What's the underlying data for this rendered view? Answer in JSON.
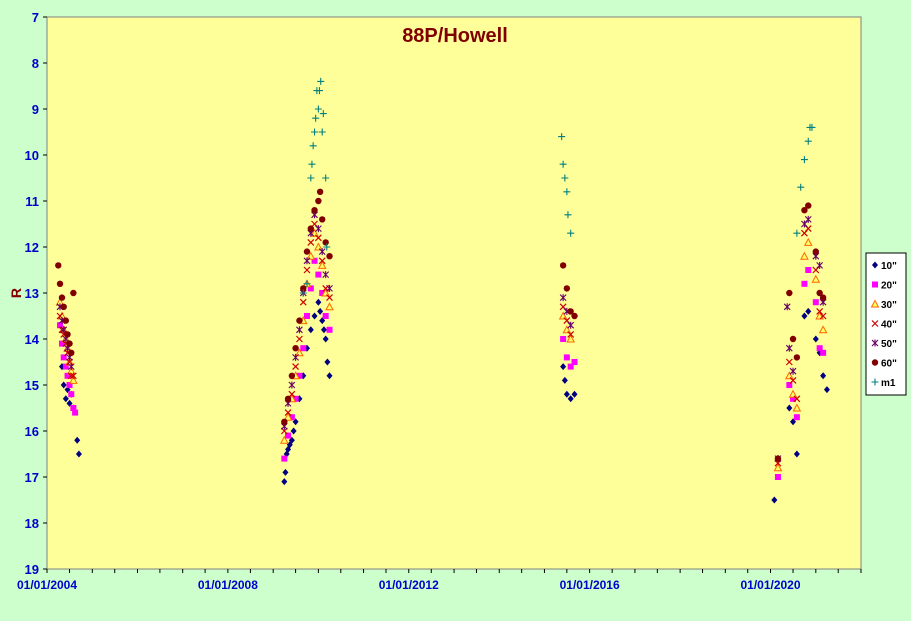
{
  "chart_data": {
    "type": "scatter",
    "title": "88P/Howell",
    "xlabel": "",
    "ylabel": "R",
    "ylim": [
      19,
      7
    ],
    "y_inverted": true,
    "y_ticks": [
      "7",
      "8",
      "9",
      "10",
      "11",
      "12",
      "13",
      "14",
      "15",
      "16",
      "17",
      "18",
      "19"
    ],
    "xlim": [
      "2004-01-01",
      "2022-01-01"
    ],
    "x_ticks": [
      "01/01/2004",
      "01/01/2008",
      "01/01/2012",
      "01/01/2016",
      "01/01/2020"
    ],
    "colors": {
      "plot_bg": "#ffff99",
      "page_bg": "#ccffcc"
    },
    "legend_position": "right",
    "series": [
      {
        "name": "10\"",
        "marker": "diamond",
        "color": "#000080",
        "points": [
          [
            "2004-05-01",
            14.6
          ],
          [
            "2004-05-15",
            15.0
          ],
          [
            "2004-06-01",
            15.3
          ],
          [
            "2004-06-15",
            15.1
          ],
          [
            "2004-07-01",
            15.4
          ],
          [
            "2004-07-15",
            15.2
          ],
          [
            "2004-08-01",
            15.5
          ],
          [
            "2004-09-01",
            16.2
          ],
          [
            "2004-09-15",
            16.5
          ],
          [
            "2009-04-01",
            17.1
          ],
          [
            "2009-04-10",
            16.9
          ],
          [
            "2009-04-20",
            16.5
          ],
          [
            "2009-05-01",
            16.4
          ],
          [
            "2009-05-15",
            16.3
          ],
          [
            "2009-06-01",
            16.2
          ],
          [
            "2009-06-15",
            16.0
          ],
          [
            "2009-07-01",
            15.8
          ],
          [
            "2009-08-01",
            15.3
          ],
          [
            "2009-09-01",
            14.8
          ],
          [
            "2009-10-01",
            14.2
          ],
          [
            "2009-11-01",
            13.8
          ],
          [
            "2009-12-01",
            13.5
          ],
          [
            "2010-01-01",
            13.2
          ],
          [
            "2010-01-15",
            13.4
          ],
          [
            "2010-02-01",
            13.6
          ],
          [
            "2010-02-15",
            13.8
          ],
          [
            "2010-03-01",
            14.0
          ],
          [
            "2010-03-15",
            14.5
          ],
          [
            "2010-04-01",
            14.8
          ],
          [
            "2015-06-01",
            14.6
          ],
          [
            "2015-06-15",
            14.9
          ],
          [
            "2015-07-01",
            15.2
          ],
          [
            "2015-08-01",
            15.3
          ],
          [
            "2015-09-01",
            15.2
          ],
          [
            "2020-02-01",
            17.5
          ],
          [
            "2020-06-01",
            15.5
          ],
          [
            "2020-07-01",
            15.8
          ],
          [
            "2020-08-01",
            16.5
          ],
          [
            "2020-10-01",
            13.5
          ],
          [
            "2020-11-01",
            13.4
          ],
          [
            "2021-01-01",
            14.0
          ],
          [
            "2021-02-01",
            14.3
          ],
          [
            "2021-03-01",
            14.8
          ],
          [
            "2021-04-01",
            15.1
          ]
        ]
      },
      {
        "name": "20\"",
        "marker": "square",
        "color": "#ff00ff",
        "points": [
          [
            "2004-04-15",
            13.7
          ],
          [
            "2004-05-01",
            14.1
          ],
          [
            "2004-05-15",
            14.4
          ],
          [
            "2004-06-01",
            14.6
          ],
          [
            "2004-06-15",
            14.8
          ],
          [
            "2004-07-01",
            15.0
          ],
          [
            "2004-07-15",
            15.2
          ],
          [
            "2004-08-01",
            15.5
          ],
          [
            "2004-08-15",
            15.6
          ],
          [
            "2009-04-01",
            16.6
          ],
          [
            "2009-05-01",
            16.1
          ],
          [
            "2009-06-01",
            15.7
          ],
          [
            "2009-07-01",
            15.3
          ],
          [
            "2009-08-01",
            14.8
          ],
          [
            "2009-09-01",
            14.2
          ],
          [
            "2009-10-01",
            13.5
          ],
          [
            "2009-11-01",
            12.9
          ],
          [
            "2009-12-01",
            12.3
          ],
          [
            "2010-01-01",
            12.6
          ],
          [
            "2010-02-01",
            13.0
          ],
          [
            "2010-03-01",
            13.5
          ],
          [
            "2010-04-01",
            13.8
          ],
          [
            "2015-06-01",
            14.0
          ],
          [
            "2015-07-01",
            14.4
          ],
          [
            "2015-08-01",
            14.6
          ],
          [
            "2015-09-01",
            14.5
          ],
          [
            "2020-03-01",
            17.0
          ],
          [
            "2020-06-01",
            15.0
          ],
          [
            "2020-07-01",
            15.3
          ],
          [
            "2020-08-01",
            15.7
          ],
          [
            "2020-10-01",
            12.8
          ],
          [
            "2020-11-01",
            12.5
          ],
          [
            "2021-01-01",
            13.2
          ],
          [
            "2021-02-01",
            14.2
          ],
          [
            "2021-03-01",
            14.3
          ]
        ]
      },
      {
        "name": "30\"",
        "marker": "triangle",
        "color": "#ff6600",
        "points": [
          [
            "2004-04-15",
            13.2
          ],
          [
            "2004-05-01",
            13.5
          ],
          [
            "2004-05-15",
            13.8
          ],
          [
            "2004-06-01",
            14.0
          ],
          [
            "2004-06-15",
            14.2
          ],
          [
            "2004-07-01",
            14.5
          ],
          [
            "2004-07-15",
            14.7
          ],
          [
            "2004-08-01",
            14.9
          ],
          [
            "2009-04-01",
            16.2
          ],
          [
            "2009-05-01",
            15.7
          ],
          [
            "2009-06-01",
            15.3
          ],
          [
            "2009-07-01",
            14.8
          ],
          [
            "2009-08-01",
            14.3
          ],
          [
            "2009-09-01",
            13.6
          ],
          [
            "2009-10-01",
            12.8
          ],
          [
            "2009-11-01",
            12.2
          ],
          [
            "2009-12-01",
            11.7
          ],
          [
            "2010-01-01",
            12.0
          ],
          [
            "2010-02-01",
            12.4
          ],
          [
            "2010-03-01",
            13.0
          ],
          [
            "2010-04-01",
            13.3
          ],
          [
            "2015-06-01",
            13.5
          ],
          [
            "2015-07-01",
            13.8
          ],
          [
            "2015-08-01",
            14.0
          ],
          [
            "2020-03-01",
            16.8
          ],
          [
            "2020-06-01",
            14.8
          ],
          [
            "2020-07-01",
            15.2
          ],
          [
            "2020-08-01",
            15.5
          ],
          [
            "2020-10-01",
            12.2
          ],
          [
            "2020-11-01",
            11.9
          ],
          [
            "2021-01-01",
            12.7
          ],
          [
            "2021-02-01",
            13.5
          ],
          [
            "2021-03-01",
            13.8
          ]
        ]
      },
      {
        "name": "40\"",
        "marker": "x",
        "color": "#cc0000",
        "points": [
          [
            "2004-04-15",
            13.5
          ],
          [
            "2004-05-01",
            13.8
          ],
          [
            "2004-05-15",
            13.9
          ],
          [
            "2004-06-01",
            14.1
          ],
          [
            "2004-06-15",
            14.3
          ],
          [
            "2004-07-01",
            14.5
          ],
          [
            "2004-07-15",
            14.8
          ],
          [
            "2004-08-01",
            14.8
          ],
          [
            "2009-04-01",
            16.0
          ],
          [
            "2009-05-01",
            15.6
          ],
          [
            "2009-06-01",
            15.2
          ],
          [
            "2009-07-01",
            14.6
          ],
          [
            "2009-08-01",
            14.0
          ],
          [
            "2009-09-01",
            13.2
          ],
          [
            "2009-10-01",
            12.5
          ],
          [
            "2009-11-01",
            11.9
          ],
          [
            "2009-12-01",
            11.5
          ],
          [
            "2010-01-01",
            11.8
          ],
          [
            "2010-02-01",
            12.3
          ],
          [
            "2010-03-01",
            12.9
          ],
          [
            "2010-04-01",
            13.1
          ],
          [
            "2015-06-01",
            13.3
          ],
          [
            "2015-07-01",
            13.6
          ],
          [
            "2015-08-01",
            13.9
          ],
          [
            "2020-03-01",
            16.7
          ],
          [
            "2020-06-01",
            14.5
          ],
          [
            "2020-07-01",
            14.9
          ],
          [
            "2020-08-01",
            15.3
          ],
          [
            "2020-10-01",
            11.7
          ],
          [
            "2020-11-01",
            11.6
          ],
          [
            "2021-01-01",
            12.5
          ],
          [
            "2021-02-01",
            13.4
          ],
          [
            "2021-03-01",
            13.5
          ]
        ]
      },
      {
        "name": "50\"",
        "marker": "star",
        "color": "#660066",
        "points": [
          [
            "2004-04-15",
            13.3
          ],
          [
            "2004-05-01",
            13.6
          ],
          [
            "2004-05-15",
            13.8
          ],
          [
            "2004-06-01",
            14.0
          ],
          [
            "2004-06-15",
            14.2
          ],
          [
            "2004-07-01",
            14.4
          ],
          [
            "2004-07-15",
            14.6
          ],
          [
            "2009-04-01",
            15.9
          ],
          [
            "2009-05-01",
            15.4
          ],
          [
            "2009-06-01",
            15.0
          ],
          [
            "2009-07-01",
            14.4
          ],
          [
            "2009-08-01",
            13.8
          ],
          [
            "2009-09-01",
            13.0
          ],
          [
            "2009-10-01",
            12.3
          ],
          [
            "2009-11-01",
            11.7
          ],
          [
            "2009-12-01",
            11.3
          ],
          [
            "2010-01-01",
            11.6
          ],
          [
            "2010-02-01",
            12.1
          ],
          [
            "2010-03-01",
            12.6
          ],
          [
            "2010-04-01",
            12.9
          ],
          [
            "2015-06-01",
            13.1
          ],
          [
            "2015-07-01",
            13.4
          ],
          [
            "2015-08-01",
            13.7
          ],
          [
            "2020-03-01",
            16.6
          ],
          [
            "2020-05-15",
            13.3
          ],
          [
            "2020-06-01",
            14.2
          ],
          [
            "2020-07-01",
            14.7
          ],
          [
            "2020-10-01",
            11.5
          ],
          [
            "2020-11-01",
            11.4
          ],
          [
            "2021-01-01",
            12.2
          ],
          [
            "2021-02-01",
            12.4
          ],
          [
            "2021-03-01",
            13.2
          ]
        ]
      },
      {
        "name": "60\"",
        "marker": "circle",
        "color": "#800000",
        "points": [
          [
            "2004-04-01",
            12.4
          ],
          [
            "2004-04-15",
            12.8
          ],
          [
            "2004-05-01",
            13.1
          ],
          [
            "2004-05-15",
            13.3
          ],
          [
            "2004-06-01",
            13.6
          ],
          [
            "2004-06-15",
            13.9
          ],
          [
            "2004-07-01",
            14.1
          ],
          [
            "2004-07-15",
            14.3
          ],
          [
            "2004-08-01",
            13.0
          ],
          [
            "2009-04-01",
            15.8
          ],
          [
            "2009-05-01",
            15.3
          ],
          [
            "2009-06-01",
            14.8
          ],
          [
            "2009-07-01",
            14.2
          ],
          [
            "2009-08-01",
            13.6
          ],
          [
            "2009-09-01",
            12.9
          ],
          [
            "2009-10-01",
            12.1
          ],
          [
            "2009-11-01",
            11.6
          ],
          [
            "2009-12-01",
            11.2
          ],
          [
            "2010-01-01",
            11.0
          ],
          [
            "2010-01-15",
            10.8
          ],
          [
            "2010-02-01",
            11.4
          ],
          [
            "2010-03-01",
            11.9
          ],
          [
            "2010-04-01",
            12.2
          ],
          [
            "2015-06-01",
            12.4
          ],
          [
            "2015-07-01",
            12.9
          ],
          [
            "2015-08-01",
            13.4
          ],
          [
            "2015-09-01",
            13.5
          ],
          [
            "2020-03-01",
            16.6
          ],
          [
            "2020-06-01",
            13.0
          ],
          [
            "2020-07-01",
            14.0
          ],
          [
            "2020-08-01",
            14.4
          ],
          [
            "2020-10-01",
            11.2
          ],
          [
            "2020-11-01",
            11.1
          ],
          [
            "2021-01-01",
            12.1
          ],
          [
            "2021-02-01",
            13.0
          ],
          [
            "2021-03-01",
            13.1
          ]
        ]
      },
      {
        "name": "m1",
        "marker": "plus",
        "color": "#008080",
        "points": [
          [
            "2009-09-01",
            13.0
          ],
          [
            "2009-10-01",
            12.8
          ],
          [
            "2009-11-01",
            10.5
          ],
          [
            "2009-11-10",
            10.2
          ],
          [
            "2009-11-20",
            9.8
          ],
          [
            "2009-12-01",
            9.5
          ],
          [
            "2009-12-10",
            9.2
          ],
          [
            "2009-12-20",
            8.6
          ],
          [
            "2010-01-01",
            9.0
          ],
          [
            "2010-01-10",
            8.6
          ],
          [
            "2010-01-20",
            8.4
          ],
          [
            "2010-02-01",
            9.5
          ],
          [
            "2010-02-10",
            9.1
          ],
          [
            "2010-03-01",
            10.5
          ],
          [
            "2010-03-10",
            12.0
          ],
          [
            "2015-05-20",
            9.6
          ],
          [
            "2015-06-01",
            10.2
          ],
          [
            "2015-06-15",
            10.5
          ],
          [
            "2015-07-01",
            10.8
          ],
          [
            "2015-07-10",
            11.3
          ],
          [
            "2015-08-01",
            11.7
          ],
          [
            "2020-08-01",
            11.7
          ],
          [
            "2020-09-01",
            10.7
          ],
          [
            "2020-10-01",
            10.1
          ],
          [
            "2020-11-01",
            9.7
          ],
          [
            "2020-11-15",
            9.4
          ],
          [
            "2020-12-01",
            9.4
          ]
        ]
      }
    ]
  }
}
